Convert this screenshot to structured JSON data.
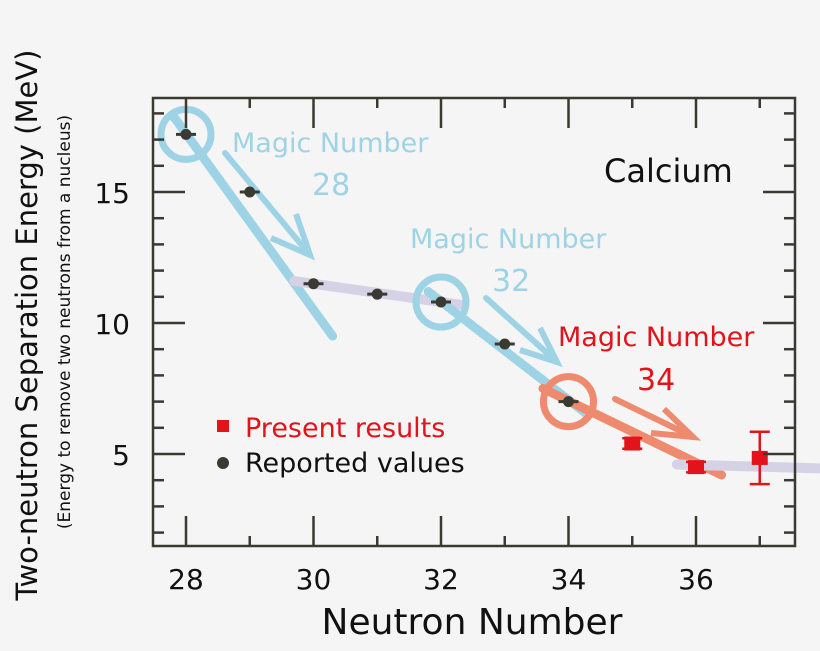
{
  "chart_data": {
    "type": "scatter",
    "title": "",
    "xlabel": "Neutron Number",
    "ylabel": "Two-neutron Separation Energy (MeV)",
    "ylabel_sub": "(Energy to remove two neutrons from a nucleus)",
    "xlim": [
      27.5,
      37.55
    ],
    "ylim": [
      1.5,
      18.5
    ],
    "x_ticks": [
      28,
      30,
      32,
      34,
      36
    ],
    "y_ticks": [
      5,
      10,
      15
    ],
    "grid": false,
    "annotation_element": "Calcium",
    "legend": {
      "position": "lower-left",
      "entries": [
        {
          "label": "Present results",
          "marker": "square",
          "color": "#e3131b"
        },
        {
          "label": "Reported values",
          "marker": "circle",
          "color": "#3a3a32"
        }
      ]
    },
    "series": [
      {
        "name": "Reported values",
        "marker": "circle",
        "color": "#3a3a32",
        "points": [
          {
            "x": 28,
            "y": 17.2,
            "xerr": 0.15
          },
          {
            "x": 29,
            "y": 15.0,
            "xerr": 0.15
          },
          {
            "x": 30,
            "y": 11.5,
            "xerr": 0.15
          },
          {
            "x": 31,
            "y": 11.1,
            "xerr": 0.15
          },
          {
            "x": 32,
            "y": 10.8,
            "xerr": 0.15
          },
          {
            "x": 33,
            "y": 9.2,
            "xerr": 0.15
          },
          {
            "x": 34,
            "y": 7.0,
            "xerr": 0.15
          }
        ]
      },
      {
        "name": "Present results",
        "marker": "square",
        "color": "#e3131b",
        "points": [
          {
            "x": 35,
            "y": 5.4,
            "yerr": 0.2
          },
          {
            "x": 36,
            "y": 4.5,
            "yerr": 0.2
          },
          {
            "x": 37,
            "y": 4.85,
            "yerr": 1.0
          }
        ]
      }
    ],
    "annotations": [
      {
        "label": "Magic Number",
        "number": "28",
        "color": "#9ed3e6",
        "circle_at": [
          28,
          17.2
        ]
      },
      {
        "label": "Magic Number",
        "number": "32",
        "color": "#9ed3e6",
        "circle_at": [
          32,
          10.8
        ]
      },
      {
        "label": "Magic Number",
        "number": "34",
        "color": "#e3131b",
        "circle_at": [
          34,
          7.0
        ]
      }
    ],
    "trend_lines": [
      {
        "color": "#9ed3e6",
        "from": [
          27.8,
          17.9
        ],
        "to": [
          30.3,
          9.5
        ]
      },
      {
        "color": "#d5d2e6",
        "from": [
          29.7,
          11.6
        ],
        "to": [
          32.3,
          10.7
        ]
      },
      {
        "color": "#9ed3e6",
        "from": [
          31.8,
          11.2
        ],
        "to": [
          34.3,
          6.5
        ]
      },
      {
        "color": "#ee8a6e",
        "from": [
          33.6,
          7.5
        ],
        "to": [
          36.4,
          4.2
        ]
      },
      {
        "color": "#d5d2e6",
        "from": [
          35.7,
          4.6
        ],
        "to": [
          38.0,
          4.45
        ]
      }
    ]
  },
  "colors": {
    "axis": "#3a3a32",
    "blue": "#9ed3e6",
    "lavender": "#d5d2e6",
    "orange": "#ee8a6e",
    "red": "#e3131b",
    "dark": "#3a3a32"
  }
}
